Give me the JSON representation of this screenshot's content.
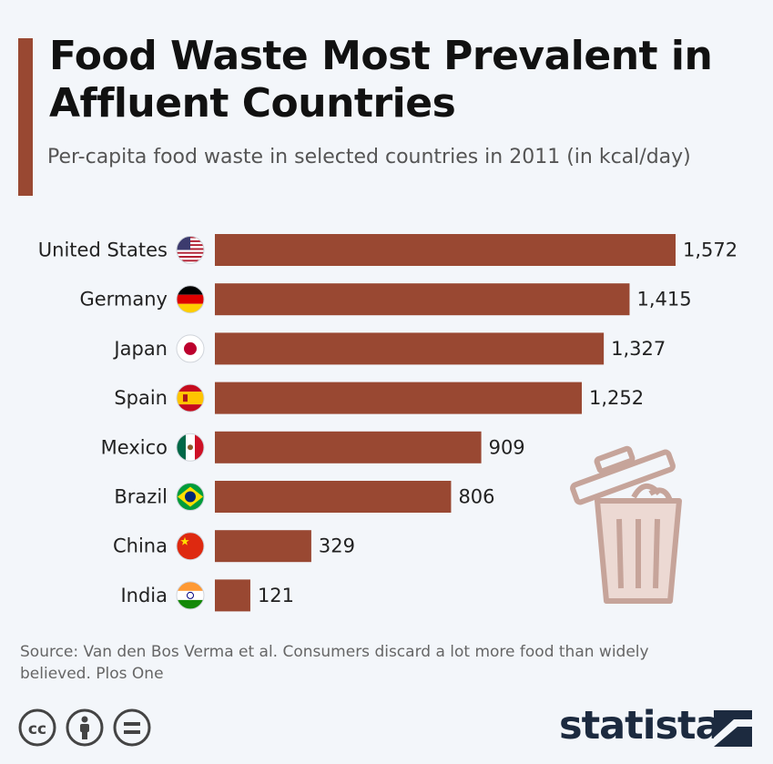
{
  "header": {
    "title": "Food Waste Most Prevalent in Affluent Countries",
    "subtitle": "Per-capita food waste in selected countries in 2011 (in kcal/day)"
  },
  "chart_data": {
    "type": "bar",
    "orientation": "horizontal",
    "title": "Food Waste Most Prevalent in Affluent Countries",
    "subtitle": "Per-capita food waste in selected countries in 2011 (in kcal/day)",
    "categories": [
      "United States",
      "Germany",
      "Japan",
      "Spain",
      "Mexico",
      "Brazil",
      "China",
      "India"
    ],
    "values": [
      1572,
      1415,
      1327,
      1252,
      909,
      806,
      329,
      121
    ],
    "value_labels": [
      "1,572",
      "1,415",
      "1,327",
      "1,252",
      "909",
      "806",
      "329",
      "121"
    ],
    "xlim": [
      0,
      1572
    ],
    "grid": false,
    "bar_color": "#994832"
  },
  "footer": {
    "source": "Source: Van den Bos Verma et al. Consumers discard a lot more food than widely believed. Plos One",
    "brand": "statista",
    "license_icons": [
      "cc-icon",
      "by-icon",
      "nd-icon"
    ]
  },
  "colors": {
    "accent": "#994832",
    "background": "#f3f6fa",
    "brand": "#1c2a3f"
  },
  "decor": {
    "illustration": "trash-can-icon"
  }
}
